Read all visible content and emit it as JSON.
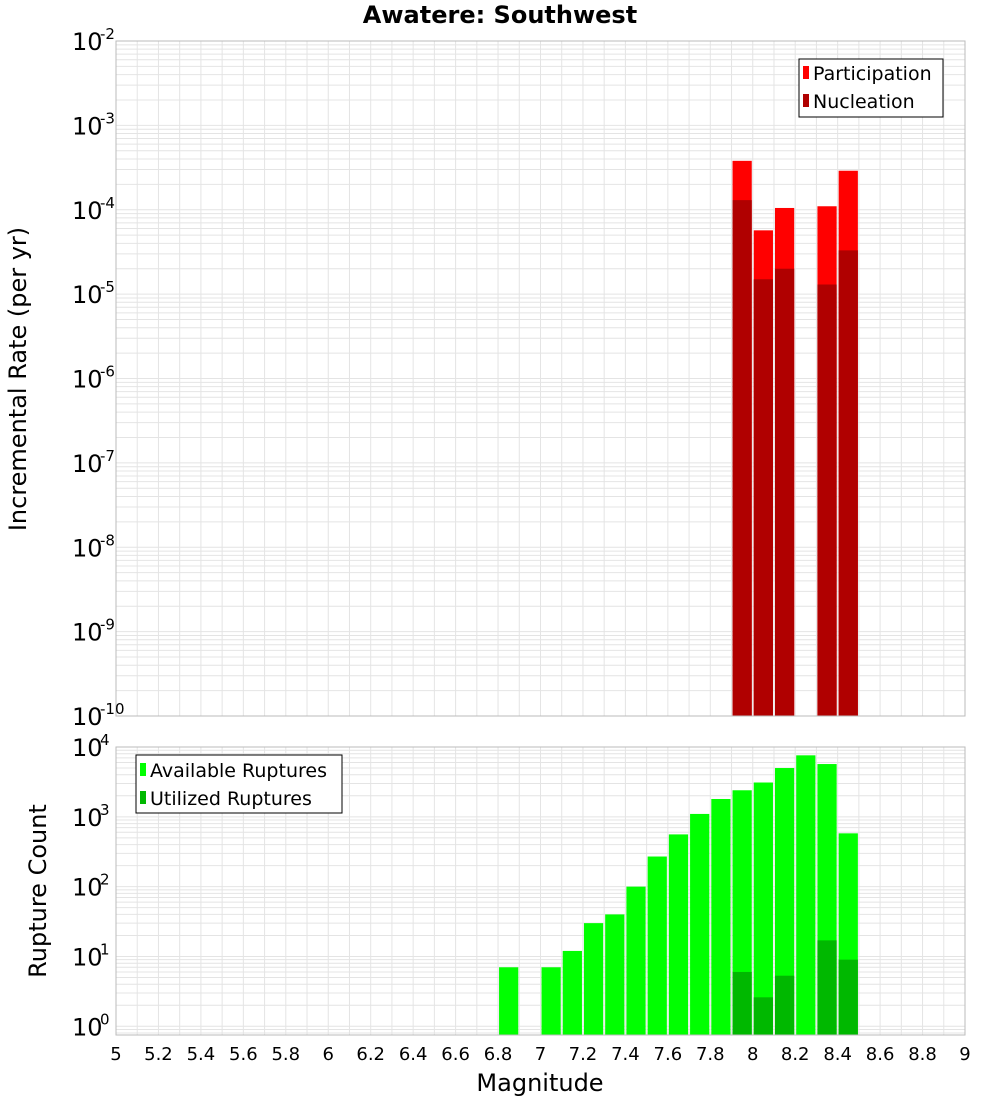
{
  "title": "Awatere: Southwest",
  "xlabel": "Magnitude",
  "colors": {
    "participation": "#ff0000",
    "nucleation": "#b00000",
    "available": "#00ff00",
    "utilized": "#00b800",
    "grid": "#e4e4e4",
    "frame": "#bbbbbb"
  },
  "chart_data": [
    {
      "type": "bar",
      "panel": "top",
      "ylabel": "Incremental Rate (per yr)",
      "xlim": [
        5,
        9
      ],
      "xticks": [
        "5",
        "5.2",
        "5.4",
        "5.6",
        "5.8",
        "6",
        "6.2",
        "6.4",
        "6.6",
        "6.8",
        "7",
        "7.2",
        "7.4",
        "7.6",
        "7.8",
        "8",
        "8.2",
        "8.4",
        "8.6",
        "8.8",
        "9"
      ],
      "yscale": "log",
      "ylim": [
        1e-10,
        0.01
      ],
      "yticks": [
        {
          "value": 0.01,
          "base": "10",
          "exp": "-2"
        },
        {
          "value": 0.001,
          "base": "10",
          "exp": "-3"
        },
        {
          "value": 0.0001,
          "base": "10",
          "exp": "-4"
        },
        {
          "value": 1e-05,
          "base": "10",
          "exp": "-5"
        },
        {
          "value": 1e-06,
          "base": "10",
          "exp": "-6"
        },
        {
          "value": 1e-07,
          "base": "10",
          "exp": "-7"
        },
        {
          "value": 1e-08,
          "base": "10",
          "exp": "-8"
        },
        {
          "value": 1e-09,
          "base": "10",
          "exp": "-9"
        },
        {
          "value": 1e-10,
          "base": "10",
          "exp": "-10"
        }
      ],
      "grid": true,
      "legend_position": "top-right",
      "bin_width": 0.1,
      "series": [
        {
          "name": "Participation",
          "color": "#ff0000",
          "x": [
            7.95,
            8.05,
            8.15,
            8.35,
            8.45
          ],
          "values": [
            0.00038,
            5.7e-05,
            0.000105,
            0.00011,
            0.00029
          ]
        },
        {
          "name": "Nucleation",
          "color": "#b00000",
          "x": [
            7.95,
            8.05,
            8.15,
            8.35,
            8.45
          ],
          "values": [
            0.00013,
            1.5e-05,
            2e-05,
            1.3e-05,
            3.3e-05
          ]
        }
      ]
    },
    {
      "type": "bar",
      "panel": "bottom",
      "ylabel": "Rupture Count",
      "xlabel": "Magnitude",
      "xlim": [
        5,
        9
      ],
      "xticks": [
        "5",
        "5.2",
        "5.4",
        "5.6",
        "5.8",
        "6",
        "6.2",
        "6.4",
        "6.6",
        "6.8",
        "7",
        "7.2",
        "7.4",
        "7.6",
        "7.8",
        "8",
        "8.2",
        "8.4",
        "8.6",
        "8.8",
        "9"
      ],
      "yscale": "log",
      "ylim": [
        0.75,
        10000
      ],
      "yticks": [
        {
          "value": 10000,
          "base": "10",
          "exp": "4"
        },
        {
          "value": 1000,
          "base": "10",
          "exp": "3"
        },
        {
          "value": 100,
          "base": "10",
          "exp": "2"
        },
        {
          "value": 10,
          "base": "10",
          "exp": "1"
        },
        {
          "value": 1,
          "base": "10",
          "exp": "0"
        }
      ],
      "grid": true,
      "legend_position": "top-left",
      "bin_width": 0.1,
      "series": [
        {
          "name": "Available Ruptures",
          "color": "#00ff00",
          "x": [
            6.85,
            7.05,
            7.15,
            7.25,
            7.35,
            7.45,
            7.55,
            7.65,
            7.75,
            7.85,
            7.95,
            8.05,
            8.15,
            8.25,
            8.35,
            8.45
          ],
          "values": [
            7,
            7,
            12,
            30,
            40,
            100,
            270,
            560,
            1100,
            1800,
            2400,
            3100,
            5000,
            7600,
            5700,
            580
          ]
        },
        {
          "name": "Utilized Ruptures",
          "color": "#00b800",
          "x": [
            7.95,
            8.05,
            8.15,
            8.35,
            8.45
          ],
          "values": [
            6,
            2.6,
            5.3,
            17,
            9
          ]
        }
      ]
    }
  ]
}
